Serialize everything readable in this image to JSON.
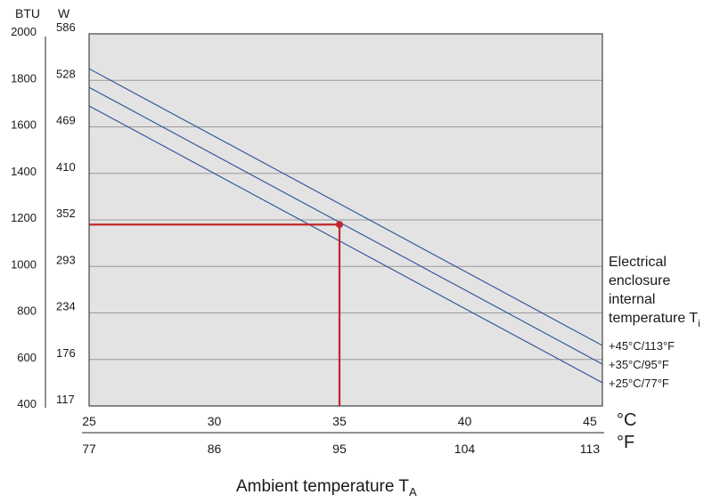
{
  "chart_data": {
    "type": "line",
    "x_axis": {
      "label": "Ambient temperature T",
      "label_sub": "A",
      "unit_primary": "°C",
      "unit_secondary": "°F",
      "ticks_c": [
        25,
        30,
        35,
        40,
        45
      ],
      "ticks_f": [
        "77",
        "86",
        "95",
        "104",
        "113"
      ],
      "range": [
        25,
        45.5
      ]
    },
    "y_axis": {
      "unit_btu": "BTU",
      "unit_w": "W",
      "ticks_btu": [
        "2000",
        "1800",
        "1600",
        "1400",
        "1200",
        "1000",
        "800",
        "600",
        "400"
      ],
      "ticks_w": [
        "586",
        "528",
        "469",
        "410",
        "352",
        "293",
        "234",
        "176",
        "117"
      ],
      "range_btu": [
        400,
        2000
      ]
    },
    "series_title_lines": [
      "Electrical",
      "enclosure",
      "internal",
      "temperature T"
    ],
    "series_title_sub": "i",
    "series": [
      {
        "name": "+45°C/113°F",
        "x": [
          25,
          45.5
        ],
        "y": [
          1850,
          660
        ]
      },
      {
        "name": "+35°C/95°F",
        "x": [
          25,
          45.5
        ],
        "y": [
          1770,
          580
        ]
      },
      {
        "name": "+25°C/77°F",
        "x": [
          25,
          45.5
        ],
        "y": [
          1690,
          500
        ]
      }
    ],
    "highlight": {
      "x": 35,
      "y": 1180
    },
    "grid": true,
    "colors": {
      "plot_bg": "#e3e3e3",
      "line": "#2a4f9a",
      "highlight": "#c0282b",
      "grid": "#9a9a9a",
      "frame": "#444444"
    }
  }
}
